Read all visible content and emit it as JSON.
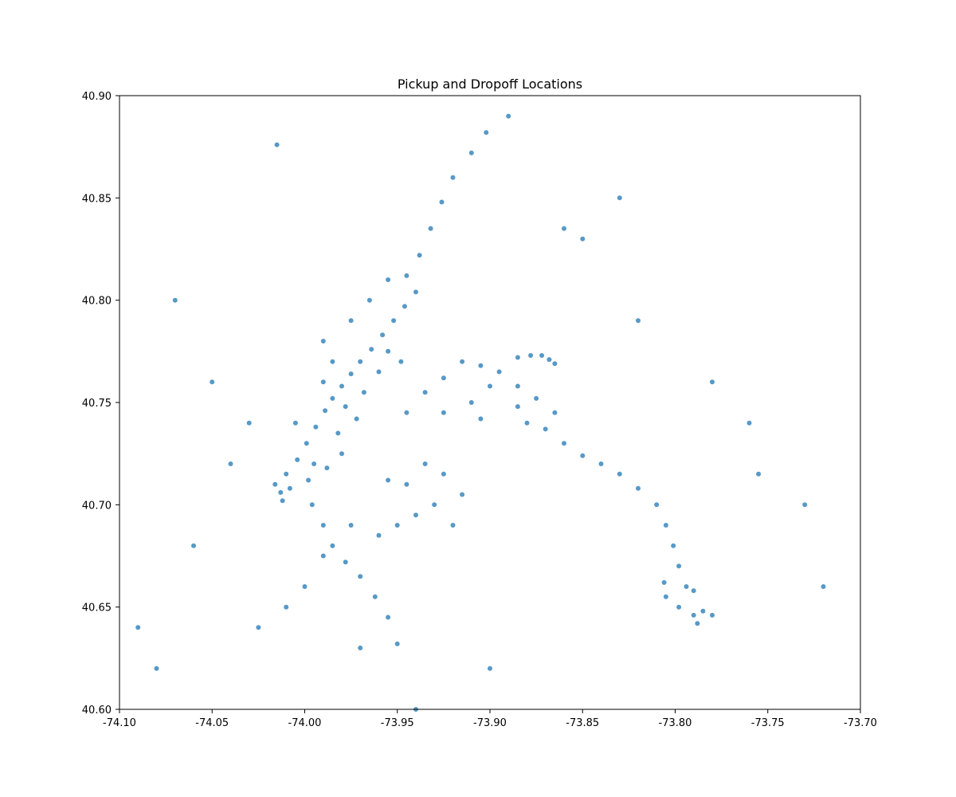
{
  "chart_data": {
    "type": "scatter",
    "title": "Pickup and Dropoff Locations",
    "xlabel": "",
    "ylabel": "",
    "xlim": [
      -74.1,
      -73.7
    ],
    "ylim": [
      40.6,
      40.9
    ],
    "xticks": [
      "-74.10",
      "-74.05",
      "-74.00",
      "-73.95",
      "-73.90",
      "-73.85",
      "-73.80",
      "-73.75",
      "-73.70"
    ],
    "xtick_values": [
      -74.1,
      -74.05,
      -74.0,
      -73.95,
      -73.9,
      -73.85,
      -73.8,
      -73.75,
      -73.7
    ],
    "yticks": [
      "40.60",
      "40.65",
      "40.70",
      "40.75",
      "40.80",
      "40.85",
      "40.90"
    ],
    "ytick_values": [
      40.6,
      40.65,
      40.7,
      40.75,
      40.8,
      40.85,
      40.9
    ],
    "grid": false,
    "color": "#1f77b4",
    "series": [
      {
        "values": [
          [
            -74.013,
            40.706
          ],
          [
            -74.016,
            40.71
          ],
          [
            -74.01,
            40.715
          ],
          [
            -74.004,
            40.722
          ],
          [
            -73.999,
            40.73
          ],
          [
            -73.994,
            40.738
          ],
          [
            -73.989,
            40.746
          ],
          [
            -73.985,
            40.752
          ],
          [
            -73.98,
            40.758
          ],
          [
            -73.975,
            40.764
          ],
          [
            -73.97,
            40.77
          ],
          [
            -73.964,
            40.776
          ],
          [
            -73.958,
            40.783
          ],
          [
            -73.952,
            40.79
          ],
          [
            -73.946,
            40.797
          ],
          [
            -73.94,
            40.804
          ],
          [
            -73.945,
            40.812
          ],
          [
            -73.938,
            40.822
          ],
          [
            -73.932,
            40.835
          ],
          [
            -73.926,
            40.848
          ],
          [
            -73.92,
            40.86
          ],
          [
            -73.91,
            40.872
          ],
          [
            -73.902,
            40.882
          ],
          [
            -74.005,
            40.74
          ],
          [
            -73.995,
            40.72
          ],
          [
            -73.99,
            40.76
          ],
          [
            -73.978,
            40.748
          ],
          [
            -73.968,
            40.755
          ],
          [
            -73.96,
            40.765
          ],
          [
            -73.955,
            40.775
          ],
          [
            -73.948,
            40.77
          ],
          [
            -73.985,
            40.77
          ],
          [
            -73.99,
            40.78
          ],
          [
            -73.975,
            40.79
          ],
          [
            -73.965,
            40.8
          ],
          [
            -73.955,
            40.81
          ],
          [
            -74.012,
            40.702
          ],
          [
            -74.008,
            40.708
          ],
          [
            -73.998,
            40.712
          ],
          [
            -73.988,
            40.718
          ],
          [
            -73.98,
            40.725
          ],
          [
            -73.982,
            40.735
          ],
          [
            -73.972,
            40.742
          ],
          [
            -73.996,
            40.7
          ],
          [
            -73.99,
            40.69
          ],
          [
            -73.985,
            40.68
          ],
          [
            -73.978,
            40.672
          ],
          [
            -73.97,
            40.665
          ],
          [
            -73.962,
            40.655
          ],
          [
            -73.955,
            40.645
          ],
          [
            -73.95,
            40.632
          ],
          [
            -73.975,
            40.69
          ],
          [
            -73.96,
            40.685
          ],
          [
            -73.95,
            40.69
          ],
          [
            -73.94,
            40.695
          ],
          [
            -73.93,
            40.7
          ],
          [
            -73.92,
            40.69
          ],
          [
            -73.945,
            40.71
          ],
          [
            -73.935,
            40.72
          ],
          [
            -73.925,
            40.715
          ],
          [
            -73.915,
            40.705
          ],
          [
            -73.955,
            40.712
          ],
          [
            -73.99,
            40.675
          ],
          [
            -74.0,
            40.66
          ],
          [
            -74.01,
            40.65
          ],
          [
            -74.025,
            40.64
          ],
          [
            -73.97,
            40.63
          ],
          [
            -73.945,
            40.745
          ],
          [
            -73.935,
            40.755
          ],
          [
            -73.925,
            40.762
          ],
          [
            -73.915,
            40.77
          ],
          [
            -73.905,
            40.768
          ],
          [
            -73.895,
            40.765
          ],
          [
            -73.885,
            40.758
          ],
          [
            -73.875,
            40.752
          ],
          [
            -73.865,
            40.745
          ],
          [
            -73.925,
            40.745
          ],
          [
            -73.905,
            40.742
          ],
          [
            -73.885,
            40.748
          ],
          [
            -73.872,
            40.773
          ],
          [
            -73.868,
            40.771
          ],
          [
            -73.865,
            40.769
          ],
          [
            -73.878,
            40.773
          ],
          [
            -73.885,
            40.772
          ],
          [
            -73.9,
            40.758
          ],
          [
            -73.91,
            40.75
          ],
          [
            -73.88,
            40.74
          ],
          [
            -73.87,
            40.737
          ],
          [
            -73.86,
            40.73
          ],
          [
            -73.85,
            40.724
          ],
          [
            -73.84,
            40.72
          ],
          [
            -73.83,
            40.715
          ],
          [
            -73.82,
            40.708
          ],
          [
            -73.81,
            40.7
          ],
          [
            -73.805,
            40.69
          ],
          [
            -73.801,
            40.68
          ],
          [
            -73.798,
            40.67
          ],
          [
            -73.806,
            40.662
          ],
          [
            -73.805,
            40.655
          ],
          [
            -73.798,
            40.65
          ],
          [
            -73.79,
            40.646
          ],
          [
            -73.785,
            40.648
          ],
          [
            -73.78,
            40.646
          ],
          [
            -73.788,
            40.642
          ],
          [
            -73.794,
            40.66
          ],
          [
            -73.79,
            40.658
          ],
          [
            -73.755,
            40.715
          ],
          [
            -74.09,
            40.64
          ],
          [
            -74.08,
            40.62
          ],
          [
            -74.04,
            40.72
          ],
          [
            -74.03,
            40.74
          ],
          [
            -74.05,
            40.76
          ],
          [
            -73.85,
            40.83
          ],
          [
            -73.86,
            40.835
          ],
          [
            -73.82,
            40.79
          ],
          [
            -73.78,
            40.76
          ],
          [
            -73.76,
            40.74
          ],
          [
            -73.73,
            40.7
          ],
          [
            -73.72,
            40.66
          ],
          [
            -74.06,
            40.68
          ],
          [
            -74.07,
            40.8
          ],
          [
            -74.015,
            40.876
          ],
          [
            -73.89,
            40.89
          ],
          [
            -73.83,
            40.85
          ],
          [
            -73.94,
            40.6
          ],
          [
            -73.9,
            40.62
          ]
        ]
      }
    ]
  }
}
